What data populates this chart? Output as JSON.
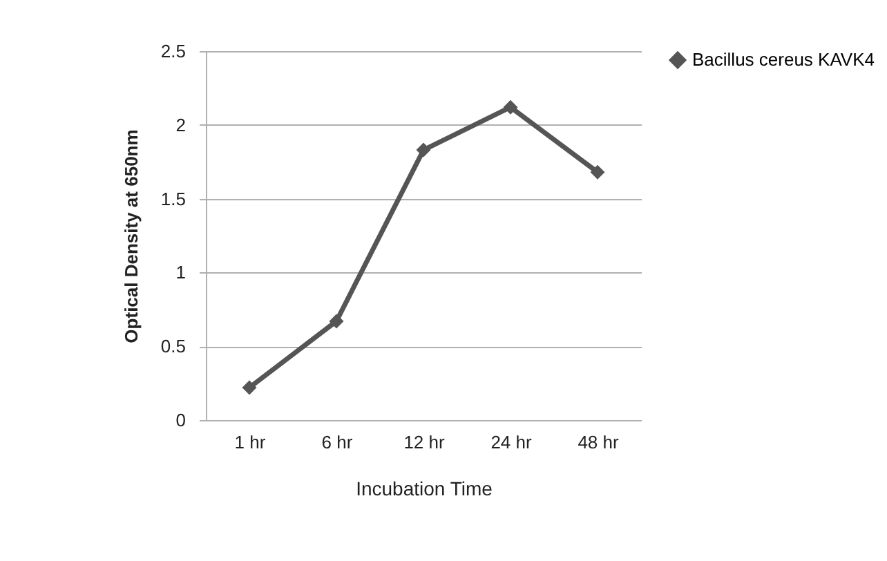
{
  "chart_data": {
    "type": "line",
    "xlabel": "Incubation Time",
    "ylabel": "Optical Density at 650nm",
    "categories": [
      "1 hr",
      "6 hr",
      "12 hr",
      "24 hr",
      "48 hr"
    ],
    "series": [
      {
        "name": "Bacillus cereus  KAVK4",
        "color": "#555555",
        "values": [
          0.22,
          0.67,
          1.83,
          2.12,
          1.68
        ]
      }
    ],
    "ylim": [
      0,
      2.5
    ],
    "yticks": [
      0,
      0.5,
      1,
      1.5,
      2,
      2.5
    ],
    "grid": "y",
    "legend": "right",
    "marker": "diamond"
  }
}
